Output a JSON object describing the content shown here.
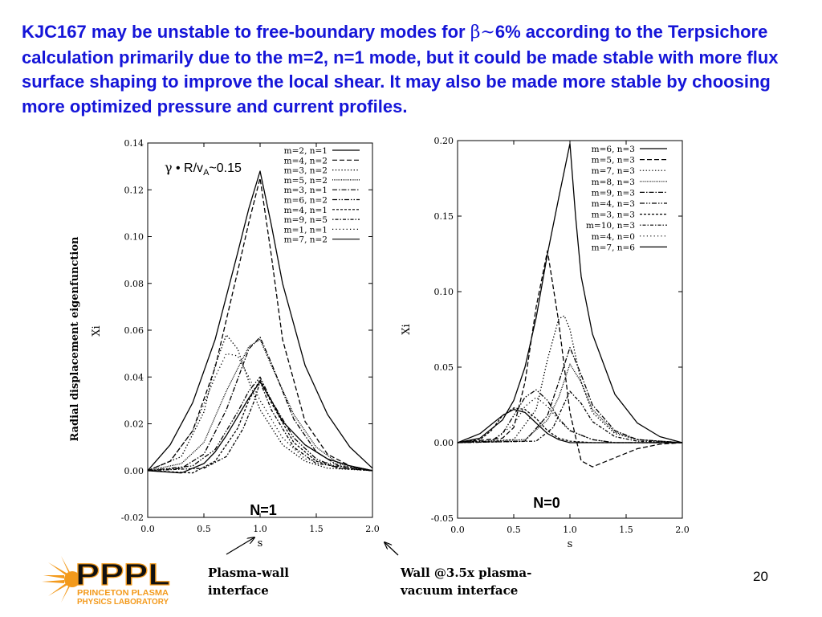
{
  "headline": {
    "part1": "KJC167 may be unstable to free-boundary modes for ",
    "beta": "β",
    "tilde": "~",
    "part2": "6% according to the Terpsichore calculation primarily due to the m=2, n=1 mode, but it could be made stable with more flux surface shaping to improve the local shear. It may also be made more stable by choosing more optimized pressure and current profiles."
  },
  "colors": {
    "headline": "#1515d8",
    "plot_line": "#000000",
    "logo_orange": "#f39a1c",
    "logo_dark": "#111111"
  },
  "growth_rate_label": {
    "gamma": "γ",
    "text": " • R/v",
    "sub": "A",
    "value": "~0.15"
  },
  "outer_ylabel": "Radial displacement eigenfunction",
  "chart_data": [
    {
      "id": "n1",
      "type": "line",
      "panel_label": "N=1",
      "xlabel": "s",
      "ylabel": "Xi",
      "xlim": [
        0,
        2
      ],
      "ylim": [
        -0.02,
        0.14
      ],
      "xticks": [
        "0.0",
        "0.5",
        "1.0",
        "1.5",
        "2.0"
      ],
      "yticks": [
        "-0.02",
        "0.00",
        "0.02",
        "0.04",
        "0.06",
        "0.08",
        "0.10",
        "0.12",
        "0.14"
      ],
      "legend_position": "top-right",
      "grid": false,
      "series": [
        {
          "name": "m=2, n=1",
          "dash": "solid",
          "x": [
            0,
            0.2,
            0.4,
            0.6,
            0.8,
            0.9,
            1.0,
            1.1,
            1.2,
            1.4,
            1.6,
            1.8,
            2.0
          ],
          "y": [
            0,
            0.011,
            0.029,
            0.056,
            0.093,
            0.112,
            0.128,
            0.105,
            0.08,
            0.045,
            0.024,
            0.01,
            0.001
          ]
        },
        {
          "name": "m=4, n=2",
          "dash": "dash",
          "x": [
            0,
            0.2,
            0.4,
            0.6,
            0.8,
            0.9,
            1.0,
            1.1,
            1.2,
            1.4,
            1.6,
            1.8,
            2.0
          ],
          "y": [
            0,
            0.004,
            0.017,
            0.044,
            0.085,
            0.106,
            0.125,
            0.092,
            0.056,
            0.021,
            0.007,
            0.002,
            0
          ]
        },
        {
          "name": "m=3, n=2",
          "dash": "dot",
          "x": [
            0,
            0.3,
            0.5,
            0.6,
            0.7,
            0.8,
            0.9,
            1.0,
            1.2,
            1.4,
            1.6,
            2.0
          ],
          "y": [
            0,
            0.006,
            0.025,
            0.045,
            0.058,
            0.052,
            0.038,
            0.026,
            0.011,
            0.004,
            0.001,
            0
          ]
        },
        {
          "name": "m=5, n=2",
          "dash": "densedot",
          "x": [
            0,
            0.3,
            0.5,
            0.7,
            0.9,
            1.0,
            1.1,
            1.3,
            1.5,
            1.7,
            2.0
          ],
          "y": [
            0,
            0.003,
            0.012,
            0.034,
            0.053,
            0.056,
            0.045,
            0.024,
            0.01,
            0.003,
            0
          ]
        },
        {
          "name": "m=3, n=1",
          "dash": "dashdot",
          "x": [
            0,
            0.3,
            0.5,
            0.7,
            0.9,
            1.0,
            1.1,
            1.3,
            1.5,
            1.7,
            2.0
          ],
          "y": [
            0,
            0.001,
            0.007,
            0.026,
            0.052,
            0.057,
            0.046,
            0.022,
            0.008,
            0.002,
            0
          ]
        },
        {
          "name": "m=6, n=2",
          "dash": "dashdotdot",
          "x": [
            0,
            0.4,
            0.6,
            0.8,
            0.9,
            1.0,
            1.1,
            1.3,
            1.5,
            1.7,
            2.0
          ],
          "y": [
            0,
            0.002,
            0.009,
            0.025,
            0.034,
            0.04,
            0.03,
            0.014,
            0.005,
            0.001,
            0
          ]
        },
        {
          "name": "m=4, n=1",
          "dash": "shortdash",
          "x": [
            0,
            0.4,
            0.6,
            0.8,
            0.9,
            1.0,
            1.1,
            1.3,
            1.5,
            1.7,
            2.0
          ],
          "y": [
            0,
            -0.001,
            0.004,
            0.018,
            0.03,
            0.039,
            0.029,
            0.012,
            0.004,
            0.001,
            0
          ]
        },
        {
          "name": "m=9, n=5",
          "dash": "dotdash",
          "x": [
            0,
            0.5,
            0.7,
            0.85,
            0.95,
            1.0,
            1.1,
            1.3,
            1.5,
            2.0
          ],
          "y": [
            0,
            0.001,
            0.006,
            0.018,
            0.03,
            0.038,
            0.026,
            0.01,
            0.003,
            0
          ]
        },
        {
          "name": "m=1, n=1",
          "dash": "sparsedot",
          "x": [
            0,
            0.2,
            0.4,
            0.6,
            0.7,
            0.8,
            0.9,
            1.0,
            1.2,
            1.4,
            2.0
          ],
          "y": [
            0,
            0.004,
            0.017,
            0.04,
            0.05,
            0.049,
            0.04,
            0.03,
            0.014,
            0.005,
            0
          ]
        },
        {
          "name": "m=7, n=2",
          "dash": "solid",
          "x": [
            0,
            0.3,
            0.5,
            0.6,
            0.7,
            0.8,
            0.9,
            1.0,
            1.1,
            1.2,
            1.4,
            1.6,
            1.8,
            2.0
          ],
          "y": [
            0,
            -0.001,
            0.003,
            0.008,
            0.015,
            0.023,
            0.031,
            0.038,
            0.03,
            0.021,
            0.011,
            0.005,
            0.002,
            0
          ]
        }
      ]
    },
    {
      "id": "n0",
      "type": "line",
      "panel_label": "N=0",
      "xlabel": "s",
      "ylabel": "Xi",
      "xlim": [
        0,
        2
      ],
      "ylim": [
        -0.05,
        0.2
      ],
      "xticks": [
        "0.0",
        "0.5",
        "1.0",
        "1.5",
        "2.0"
      ],
      "yticks": [
        "-0.05",
        "0.00",
        "0.05",
        "0.10",
        "0.15",
        "0.20"
      ],
      "legend_position": "top-right",
      "grid": false,
      "series": [
        {
          "name": "m=6, n=3",
          "dash": "solid",
          "x": [
            0,
            0.2,
            0.4,
            0.5,
            0.6,
            0.7,
            0.8,
            0.9,
            1.0,
            1.05,
            1.1,
            1.2,
            1.4,
            1.6,
            1.8,
            2.0
          ],
          "y": [
            0,
            0.003,
            0.015,
            0.028,
            0.05,
            0.083,
            0.125,
            0.162,
            0.198,
            0.15,
            0.11,
            0.072,
            0.032,
            0.013,
            0.004,
            0
          ]
        },
        {
          "name": "m=5, n=3",
          "dash": "dash",
          "x": [
            0,
            0.4,
            0.5,
            0.6,
            0.7,
            0.8,
            0.9,
            1.0,
            1.1,
            1.2,
            1.4,
            1.6,
            1.8,
            2.0
          ],
          "y": [
            0,
            0.003,
            0.01,
            0.04,
            0.09,
            0.127,
            0.08,
            0.02,
            -0.012,
            -0.016,
            -0.01,
            -0.004,
            -0.001,
            0
          ]
        },
        {
          "name": "m=7, n=3",
          "dash": "dot",
          "x": [
            0,
            0.5,
            0.7,
            0.8,
            0.9,
            0.95,
            1.0,
            1.1,
            1.2,
            1.4,
            1.6,
            2.0
          ],
          "y": [
            0,
            0.002,
            0.022,
            0.055,
            0.082,
            0.084,
            0.075,
            0.04,
            0.02,
            0.006,
            0.002,
            0
          ]
        },
        {
          "name": "m=8, n=3",
          "dash": "densedot",
          "x": [
            0,
            0.6,
            0.8,
            0.9,
            1.0,
            1.1,
            1.2,
            1.4,
            1.6,
            2.0
          ],
          "y": [
            0,
            0.002,
            0.015,
            0.03,
            0.052,
            0.04,
            0.022,
            0.007,
            0.002,
            0
          ]
        },
        {
          "name": "m=9, n=3",
          "dash": "dashdot",
          "x": [
            0,
            0.6,
            0.8,
            0.9,
            1.0,
            1.1,
            1.2,
            1.4,
            1.6,
            2.0
          ],
          "y": [
            0,
            0.001,
            0.018,
            0.04,
            0.063,
            0.045,
            0.025,
            0.008,
            0.002,
            0
          ]
        },
        {
          "name": "m=4, n=3",
          "dash": "dashdotdot",
          "x": [
            0,
            0.3,
            0.4,
            0.5,
            0.6,
            0.7,
            0.8,
            0.9,
            1.0,
            1.2,
            1.4,
            2.0
          ],
          "y": [
            0,
            0.001,
            0.006,
            0.018,
            0.03,
            0.035,
            0.028,
            0.016,
            0.008,
            0.002,
            0,
            0
          ]
        },
        {
          "name": "m=3, n=3",
          "dash": "shortdash",
          "x": [
            0,
            0.2,
            0.3,
            0.4,
            0.5,
            0.6,
            0.7,
            0.8,
            0.9,
            1.0,
            1.2,
            2.0
          ],
          "y": [
            0,
            0.002,
            0.008,
            0.018,
            0.023,
            0.022,
            0.016,
            0.008,
            0.003,
            0.001,
            0,
            0
          ]
        },
        {
          "name": "m=10, n=3",
          "dash": "dotdash",
          "x": [
            0,
            0.7,
            0.85,
            0.95,
            1.0,
            1.1,
            1.2,
            1.4,
            1.6,
            2.0
          ],
          "y": [
            0,
            0.001,
            0.01,
            0.026,
            0.034,
            0.026,
            0.014,
            0.004,
            0.001,
            0
          ]
        },
        {
          "name": "m=4, n=0",
          "dash": "sparsedot",
          "x": [
            0,
            0.3,
            0.5,
            0.6,
            0.7,
            0.8,
            0.9,
            1.0,
            1.2,
            1.4,
            2.0
          ],
          "y": [
            0,
            0.001,
            0.012,
            0.024,
            0.03,
            0.024,
            0.015,
            0.008,
            0.002,
            0,
            0
          ]
        },
        {
          "name": "m=7, n=6",
          "dash": "solid",
          "x": [
            0,
            0.2,
            0.3,
            0.4,
            0.5,
            0.6,
            0.7,
            0.8,
            0.9,
            1.0,
            1.2,
            1.5,
            2.0
          ],
          "y": [
            0,
            0.006,
            0.012,
            0.018,
            0.022,
            0.02,
            0.013,
            0.006,
            0.002,
            0,
            0,
            0,
            0
          ]
        }
      ]
    }
  ],
  "annotations": {
    "plasma_wall": [
      "Plasma-wall",
      "interface"
    ],
    "wall_vacuum": [
      "Wall @3.5x plasma-",
      "vacuum interface"
    ]
  },
  "logo": {
    "letters": "PPPL",
    "line1": "PRINCETON PLASMA",
    "line2": "PHYSICS LABORATORY"
  },
  "slide_number": "20"
}
